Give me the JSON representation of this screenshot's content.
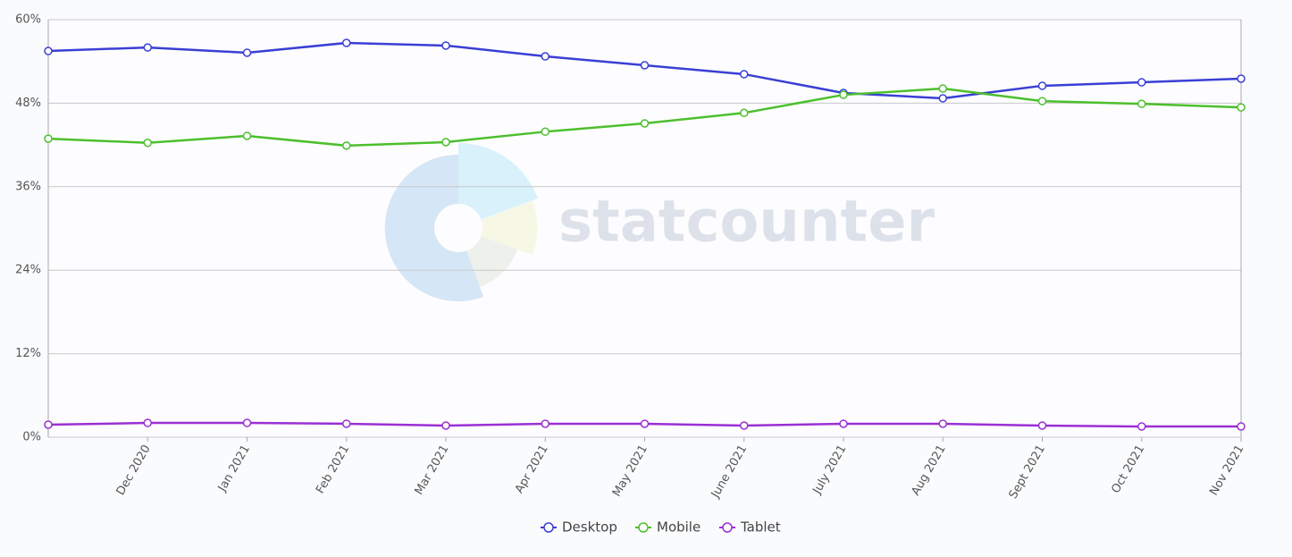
{
  "chart_data": {
    "type": "line",
    "watermark": "statcounter",
    "categories": [
      null,
      "Dec 2020",
      "Jan 2021",
      "Feb 2021",
      "Mar 2021",
      "Apr 2021",
      "May 2021",
      "June 2021",
      "July 2021",
      "Aug 2021",
      "Sept 2021",
      "Oct 2021",
      "Nov 2021"
    ],
    "series": [
      {
        "name": "Desktop",
        "color": "#3a3fd4",
        "values": [
          55.5,
          56.0,
          55.25,
          56.66,
          56.28,
          54.73,
          53.45,
          52.17,
          49.47,
          48.7,
          50.5,
          51.0,
          51.52
        ]
      },
      {
        "name": "Mobile",
        "color": "#4cbf2c",
        "values": [
          42.9,
          42.3,
          43.3,
          41.9,
          42.4,
          43.9,
          45.1,
          46.6,
          49.2,
          50.1,
          48.3,
          47.9,
          47.4
        ]
      },
      {
        "name": "Tablet",
        "color": "#9b2fd3",
        "values": [
          1.8,
          2.05,
          2.05,
          1.93,
          1.67,
          1.93,
          1.93,
          1.67,
          1.93,
          1.93,
          1.67,
          1.54,
          1.54
        ]
      }
    ],
    "ylim": [
      0,
      60
    ],
    "yticks": [
      {
        "value": 0,
        "label": "0%"
      },
      {
        "value": 12,
        "label": "12%"
      },
      {
        "value": 24,
        "label": "24%"
      },
      {
        "value": 36,
        "label": "36%"
      },
      {
        "value": 48,
        "label": "48%"
      },
      {
        "value": 60,
        "label": "60%"
      }
    ],
    "grid": true
  }
}
